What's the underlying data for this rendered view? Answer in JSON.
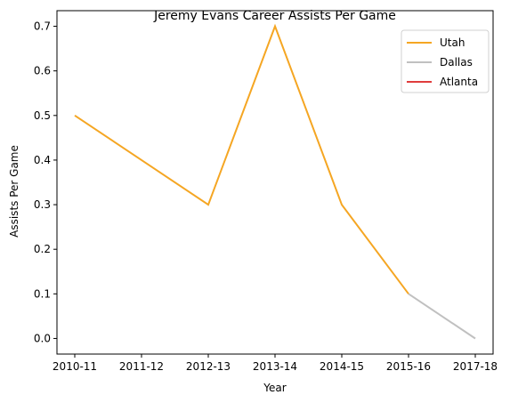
{
  "chart_data": {
    "type": "line",
    "title": "Jeremy Evans Career Assists Per Game",
    "xlabel": "Year",
    "ylabel": "Assists Per Game",
    "categories": [
      "2010-11",
      "2011-12",
      "2012-13",
      "2013-14",
      "2014-15",
      "2015-16",
      "2017-18"
    ],
    "ylim": [
      -0.035,
      0.735
    ],
    "yticks": [
      0.0,
      0.1,
      0.2,
      0.3,
      0.4,
      0.5,
      0.6,
      0.7
    ],
    "ytick_labels": [
      "0.0",
      "0.1",
      "0.2",
      "0.3",
      "0.4",
      "0.5",
      "0.6",
      "0.7"
    ],
    "grid": false,
    "legend_position": "top-right",
    "series": [
      {
        "name": "Utah",
        "color": "#f5a623",
        "points": [
          {
            "x": "2010-11",
            "y": 0.5
          },
          {
            "x": "2011-12",
            "y": 0.4
          },
          {
            "x": "2012-13",
            "y": 0.3
          },
          {
            "x": "2013-14",
            "y": 0.7
          },
          {
            "x": "2014-15",
            "y": 0.3
          },
          {
            "x": "2015-16",
            "y": 0.1
          }
        ]
      },
      {
        "name": "Dallas",
        "color": "#c0c0c0",
        "points": [
          {
            "x": "2015-16",
            "y": 0.1
          },
          {
            "x": "2017-18",
            "y": 0.0
          }
        ]
      },
      {
        "name": "Atlanta",
        "color": "#e03c3c",
        "points": []
      }
    ]
  }
}
